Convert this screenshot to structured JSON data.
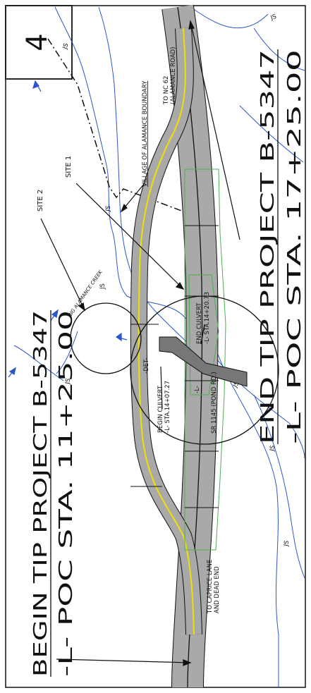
{
  "sheet_number": "4",
  "begin": {
    "title": "BEGIN TIP PROJECT B-5347",
    "station": "-L- POC STA. 11+25.00"
  },
  "end": {
    "title": "END TIP PROJECT B-5347",
    "station": "-L- POC STA. 17+25.00"
  },
  "labels": {
    "site1": "SITE 1",
    "site2": "SITE 2",
    "village_boundary": "VILLAGE OF ALAMANCE BOUNDARY",
    "to_nc62_1": "TO NC 62",
    "to_nc62_2": "(ALAMANCE ROAD)",
    "to_caprice_1": "TO CAPRICE LANE",
    "to_caprice_2": "AND DEAD END",
    "creek": "BIG ALAMANCE CREEK",
    "end_culvert_1": "END CULVERT",
    "end_culvert_2": "-L- STA.14+20.73",
    "begin_culvert_1": "BEGIN CULVERT",
    "begin_culvert_2": "-L- STA.14+07.27",
    "road": "SR 1145 (POND RD.)",
    "centerline": "-L-",
    "det": "-DET-",
    "js": "JS"
  },
  "colors": {
    "road": "#a9a9a9",
    "edge_yellow": "#f0e000",
    "creek_blue": "#2b57c9",
    "green_limit": "#4caf50",
    "ink": "#111111"
  }
}
